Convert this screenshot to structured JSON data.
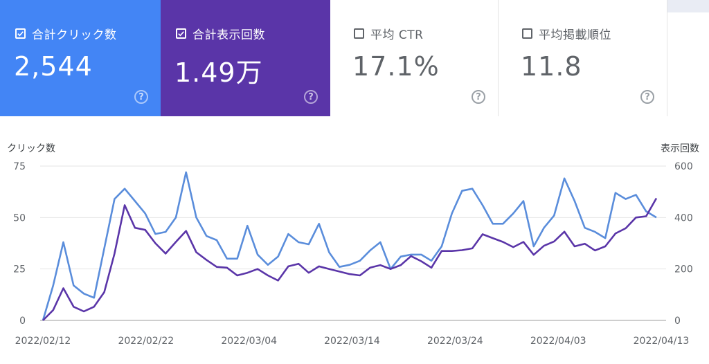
{
  "cards": {
    "clicks": {
      "label": "合計クリック数",
      "value": "2,544",
      "checked": true,
      "color": "#4385f5",
      "help": "?"
    },
    "impressions": {
      "label": "合計表示回数",
      "value": "1.49万",
      "checked": true,
      "color": "#5a35a8",
      "help": "?"
    },
    "ctr": {
      "label": "平均 CTR",
      "value": "17.1%",
      "checked": false,
      "help": "?"
    },
    "position": {
      "label": "平均掲載順位",
      "value": "11.8",
      "checked": false,
      "help": "?"
    }
  },
  "chart_data": {
    "type": "line",
    "y_left_label": "クリック数",
    "y_right_label": "表示回数",
    "y_left_ticks": [
      "0",
      "25",
      "50",
      "75"
    ],
    "y_right_ticks": [
      "0",
      "200",
      "400",
      "600"
    ],
    "ylim_left": [
      0,
      75
    ],
    "ylim_right": [
      0,
      600
    ],
    "x_ticks": [
      "2022/02/12",
      "2022/02/22",
      "2022/03/04",
      "2022/03/14",
      "2022/03/24",
      "2022/04/03",
      "2022/04/13"
    ],
    "grid": true,
    "series": [
      {
        "axis": "left",
        "color": "#5a8ddb",
        "values": [
          0,
          17,
          38,
          17,
          13,
          11,
          35,
          59,
          64,
          58,
          52,
          42,
          43,
          50,
          72,
          50,
          41,
          39,
          30,
          30,
          46,
          32,
          27,
          31,
          42,
          38,
          37,
          47,
          33,
          26,
          27,
          29,
          34,
          38,
          25,
          31,
          32,
          32,
          29,
          36,
          52,
          63,
          64,
          56,
          47,
          47,
          52,
          58,
          36,
          45,
          51,
          69,
          58,
          45,
          43,
          40,
          62,
          59,
          61,
          53,
          50
        ]
      },
      {
        "axis": "right",
        "color": "#5a35a8",
        "values": [
          0,
          40,
          125,
          53,
          35,
          53,
          110,
          260,
          448,
          360,
          352,
          300,
          260,
          305,
          348,
          265,
          235,
          208,
          205,
          175,
          185,
          200,
          175,
          155,
          210,
          220,
          185,
          210,
          200,
          190,
          180,
          175,
          205,
          215,
          200,
          215,
          250,
          230,
          205,
          270,
          270,
          273,
          280,
          335,
          320,
          305,
          285,
          305,
          255,
          290,
          307,
          345,
          288,
          298,
          272,
          288,
          338,
          358,
          400,
          405,
          475
        ]
      }
    ]
  }
}
